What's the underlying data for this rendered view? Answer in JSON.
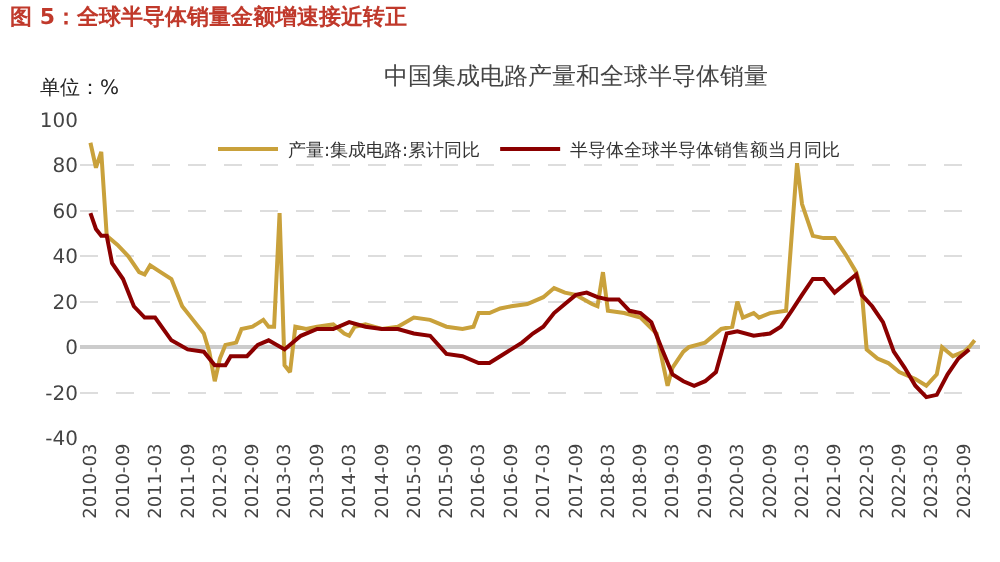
{
  "chart_data": {
    "type": "line",
    "title": "图 5：全球半导体销量金额增速接近转正",
    "subtitle": "中国集成电路产量和全球半导体销量",
    "ylabel": "单位：%",
    "series": [
      {
        "name": "产量:集成电路:累计同比",
        "color": "#c9a13b",
        "x": [
          "2010-03",
          "2010-04",
          "2010-05",
          "2010-06",
          "2010-08",
          "2010-10",
          "2010-12",
          "2011-01",
          "2011-02",
          "2011-04",
          "2011-06",
          "2011-08",
          "2011-10",
          "2011-12",
          "2012-01",
          "2012-02",
          "2012-03",
          "2012-04",
          "2012-06",
          "2012-07",
          "2012-09",
          "2012-11",
          "2012-12",
          "2013-01",
          "2013-02",
          "2013-03",
          "2013-04",
          "2013-05",
          "2013-07",
          "2013-09",
          "2013-12",
          "2014-02",
          "2014-03",
          "2014-04",
          "2014-06",
          "2014-09",
          "2014-12",
          "2015-03",
          "2015-06",
          "2015-09",
          "2015-12",
          "2016-02",
          "2016-03",
          "2016-05",
          "2016-07",
          "2016-09",
          "2016-12",
          "2017-03",
          "2017-05",
          "2017-07",
          "2017-09",
          "2017-12",
          "2018-01",
          "2018-02",
          "2018-03",
          "2018-06",
          "2018-09",
          "2018-12",
          "2019-02",
          "2019-03",
          "2019-05",
          "2019-06",
          "2019-09",
          "2019-12",
          "2020-02",
          "2020-03",
          "2020-04",
          "2020-06",
          "2020-07",
          "2020-09",
          "2020-12",
          "2021-02",
          "2021-03",
          "2021-05",
          "2021-07",
          "2021-09",
          "2021-11",
          "2022-01",
          "2022-02",
          "2022-03",
          "2022-05",
          "2022-07",
          "2022-09",
          "2022-12",
          "2023-02",
          "2023-04",
          "2023-05",
          "2023-07",
          "2023-09",
          "2023-10",
          "2023-11"
        ],
        "values": [
          90,
          79,
          86,
          49,
          45,
          40,
          33,
          32,
          36,
          33,
          30,
          18,
          12,
          6,
          -2,
          -15,
          -5,
          1,
          2,
          8,
          9,
          12,
          9,
          9,
          59,
          -8,
          -11,
          9,
          8,
          9,
          10,
          6,
          5,
          9,
          10,
          8,
          9,
          13,
          12,
          9,
          8,
          9,
          15,
          15,
          17,
          18,
          19,
          22,
          26,
          24,
          23,
          19,
          18,
          33,
          16,
          15,
          13,
          6,
          -17,
          -9,
          -2,
          0,
          2,
          8,
          9,
          20,
          13,
          15,
          13,
          15,
          16,
          81,
          63,
          49,
          48,
          48,
          41,
          33,
          25,
          -1,
          -5,
          -7,
          -11,
          -14,
          -17,
          -12,
          0,
          -4,
          -2,
          0,
          3
        ]
      },
      {
        "name": "半导体全球半导体销售额当月同比",
        "color": "#8b0000",
        "x": [
          "2010-03",
          "2010-04",
          "2010-05",
          "2010-06",
          "2010-07",
          "2010-09",
          "2010-11",
          "2011-01",
          "2011-03",
          "2011-06",
          "2011-09",
          "2011-12",
          "2012-02",
          "2012-04",
          "2012-05",
          "2012-08",
          "2012-10",
          "2012-12",
          "2013-03",
          "2013-06",
          "2013-09",
          "2013-12",
          "2014-03",
          "2014-06",
          "2014-09",
          "2014-12",
          "2015-03",
          "2015-06",
          "2015-09",
          "2015-12",
          "2016-03",
          "2016-05",
          "2016-07",
          "2016-09",
          "2016-11",
          "2017-01",
          "2017-03",
          "2017-05",
          "2017-07",
          "2017-09",
          "2017-11",
          "2018-01",
          "2018-03",
          "2018-05",
          "2018-07",
          "2018-09",
          "2018-11",
          "2019-01",
          "2019-03",
          "2019-05",
          "2019-07",
          "2019-09",
          "2019-11",
          "2020-01",
          "2020-03",
          "2020-06",
          "2020-09",
          "2020-11",
          "2021-01",
          "2021-03",
          "2021-05",
          "2021-07",
          "2021-09",
          "2021-11",
          "2022-01",
          "2022-02",
          "2022-04",
          "2022-06",
          "2022-08",
          "2022-10",
          "2022-12",
          "2023-02",
          "2023-04",
          "2023-06",
          "2023-08",
          "2023-10"
        ],
        "values": [
          59,
          52,
          49,
          49,
          37,
          30,
          18,
          13,
          13,
          3,
          -1,
          -2,
          -8,
          -8,
          -4,
          -4,
          1,
          3,
          -1,
          5,
          8,
          8,
          11,
          9,
          8,
          8,
          6,
          5,
          -3,
          -4,
          -7,
          -7,
          -4,
          -1,
          2,
          6,
          9,
          15,
          19,
          23,
          24,
          22,
          21,
          21,
          16,
          15,
          11,
          -1,
          -12,
          -15,
          -17,
          -15,
          -11,
          6,
          7,
          5,
          6,
          9,
          16,
          23,
          30,
          30,
          24,
          28,
          32,
          23,
          18,
          11,
          -2,
          -9,
          -17,
          -22,
          -21,
          -12,
          -5,
          -1
        ]
      }
    ],
    "xlim": [
      "2010-01",
      "2023-12"
    ],
    "xticks": [
      "2010-03",
      "2010-09",
      "2011-03",
      "2011-09",
      "2012-03",
      "2012-09",
      "2013-03",
      "2013-09",
      "2014-03",
      "2014-09",
      "2015-03",
      "2015-09",
      "2016-03",
      "2016-09",
      "2017-03",
      "2017-09",
      "2018-03",
      "2018-09",
      "2019-03",
      "2019-09",
      "2020-03",
      "2020-09",
      "2021-03",
      "2021-09",
      "2022-03",
      "2022-09",
      "2023-03",
      "2023-09"
    ],
    "ylim": [
      -40,
      100
    ],
    "yticks": [
      -40,
      -20,
      0,
      20,
      40,
      60,
      80,
      100
    ],
    "grid": "y",
    "legend": "top",
    "line_style": "solid",
    "marker": "none"
  }
}
